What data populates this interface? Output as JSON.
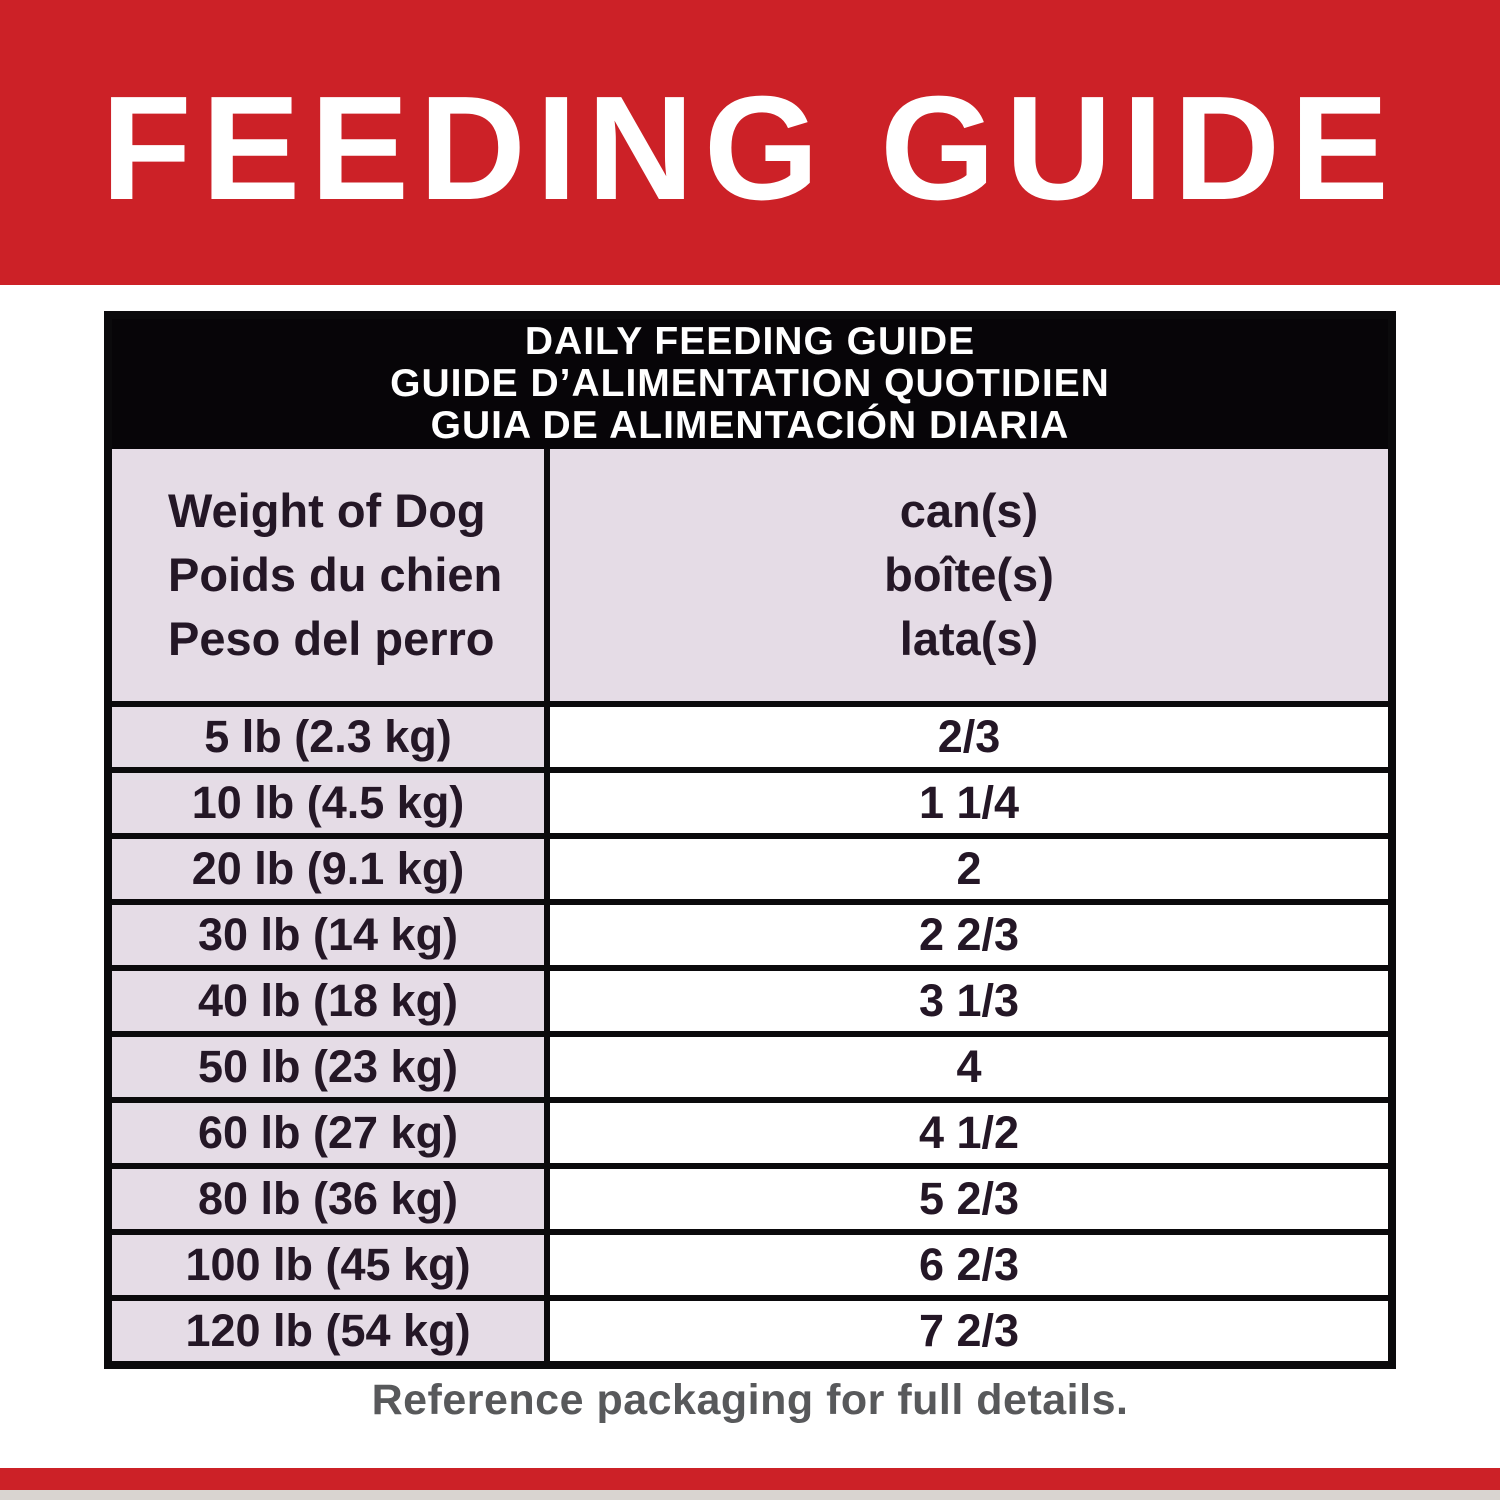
{
  "banner": {
    "title": "FEEDING GUIDE"
  },
  "table": {
    "title_lines": [
      "DAILY FEEDING GUIDE",
      "GUIDE D’ALIMENTATION QUOTIDIEN",
      "GUIA DE ALIMENTACIÓN DIARIA"
    ],
    "col1_header_lines": [
      "Weight of Dog",
      "Poids du chien",
      "Peso del perro"
    ],
    "col2_header_lines": [
      "can(s)",
      "boîte(s)",
      "lata(s)"
    ],
    "rows": [
      {
        "weight": "5 lb (2.3 kg)",
        "cans": "2/3"
      },
      {
        "weight": "10 lb (4.5 kg)",
        "cans": "1 1/4"
      },
      {
        "weight": "20 lb (9.1 kg)",
        "cans": "2"
      },
      {
        "weight": "30 lb (14 kg)",
        "cans": "2 2/3"
      },
      {
        "weight": "40 lb (18 kg)",
        "cans": "3 1/3"
      },
      {
        "weight": "50 lb (23 kg)",
        "cans": "4"
      },
      {
        "weight": "60 lb (27 kg)",
        "cans": "4 1/2"
      },
      {
        "weight": "80 lb (36 kg)",
        "cans": "5 2/3"
      },
      {
        "weight": "100 lb (45 kg)",
        "cans": "6 2/3"
      },
      {
        "weight": "120 lb (54 kg)",
        "cans": "7 2/3"
      }
    ]
  },
  "footer": {
    "note": "Reference packaging for full details."
  },
  "colors": {
    "red": "#cc2127",
    "lavender": "#e5dce6",
    "band-black": "#070508",
    "text-dark": "#241726",
    "note-gray": "#58595b",
    "strip-gray": "#d9d4d0",
    "line-black": "#0b0a0c"
  }
}
